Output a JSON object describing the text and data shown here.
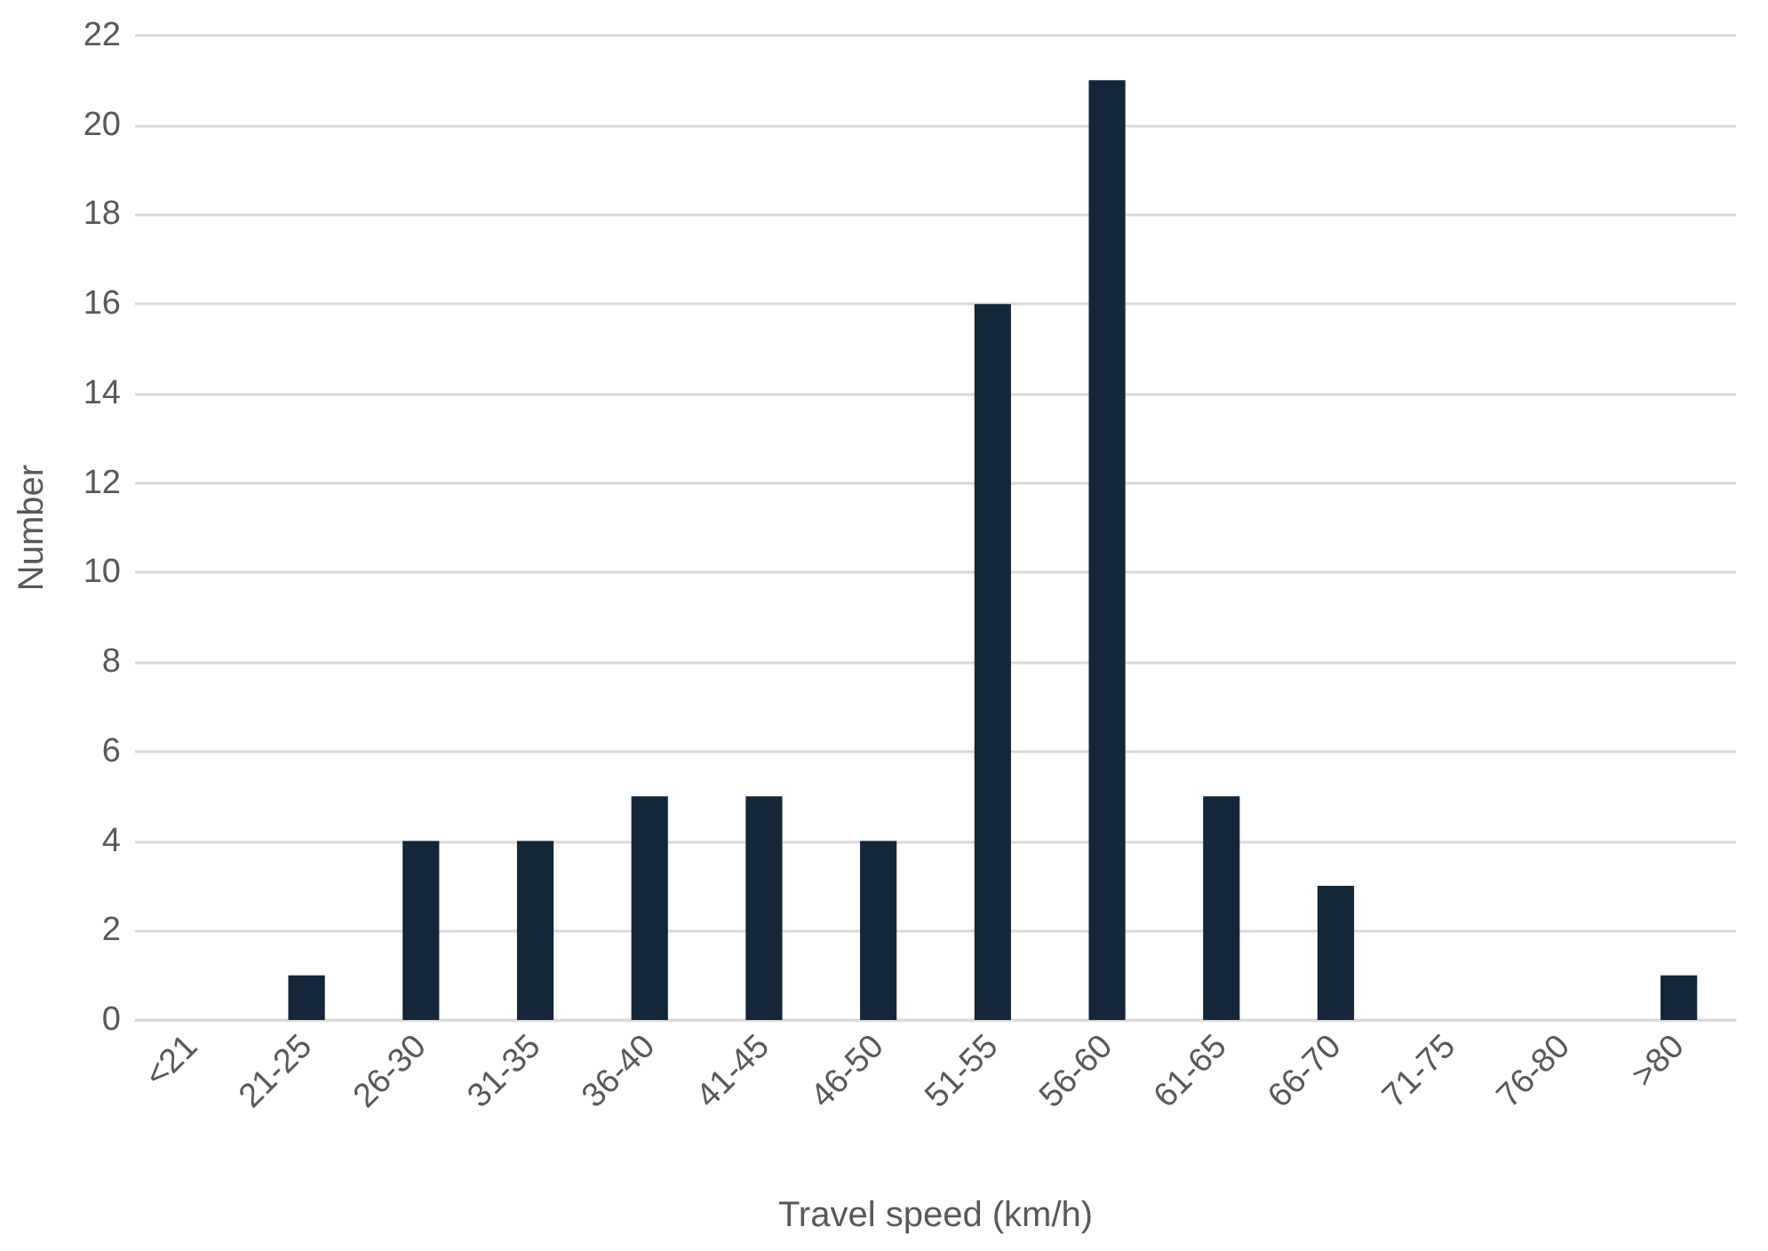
{
  "chart_data": {
    "type": "bar",
    "xlabel": "Travel speed (km/h)",
    "ylabel": "Number",
    "categories": [
      "<21",
      "21-25",
      "26-30",
      "31-35",
      "36-40",
      "41-45",
      "46-50",
      "51-55",
      "56-60",
      "61-65",
      "66-70",
      "71-75",
      "76-80",
      ">80"
    ],
    "values": [
      0,
      1,
      4,
      4,
      5,
      5,
      4,
      16,
      21,
      5,
      3,
      0,
      0,
      1
    ],
    "color": "#13263a",
    "ylim": [
      0,
      22
    ],
    "yticks": [
      0,
      2,
      4,
      6,
      8,
      10,
      12,
      14,
      16,
      18,
      20,
      22
    ],
    "grid": "y"
  }
}
